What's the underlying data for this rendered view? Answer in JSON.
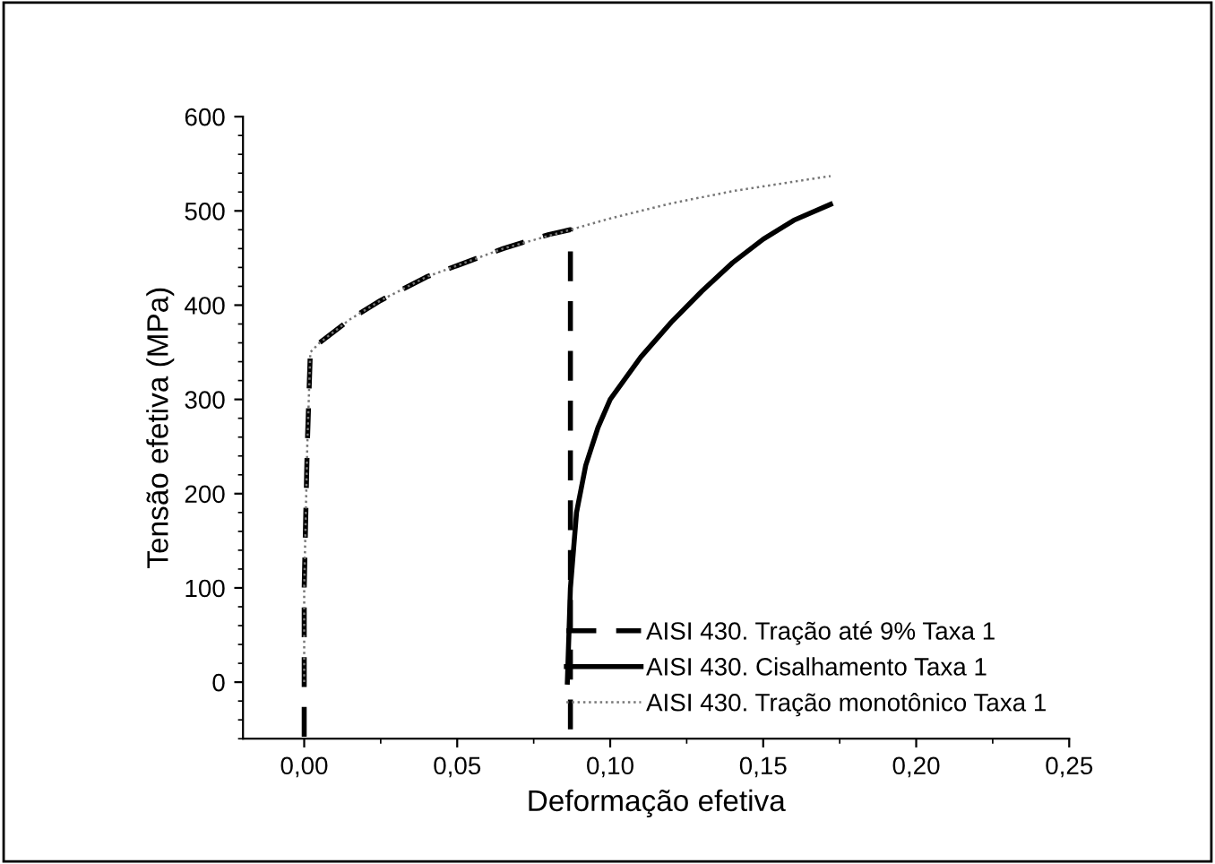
{
  "chart_data": {
    "type": "line",
    "xlabel": "Deformação efetiva",
    "ylabel": "Tensão efetiva (MPa)",
    "xlim": [
      -0.02,
      0.25
    ],
    "xticks": [
      {
        "value": 0,
        "label": "0,00"
      },
      {
        "value": 0.05,
        "label": "0,05"
      },
      {
        "value": 0.1,
        "label": "0,10"
      },
      {
        "value": 0.15,
        "label": "0,15"
      },
      {
        "value": 0.2,
        "label": "0,20"
      },
      {
        "value": 0.25,
        "label": "0,25"
      }
    ],
    "ylim": [
      -60,
      600
    ],
    "yticks": [
      0,
      100,
      200,
      300,
      400,
      500,
      600
    ],
    "grid": false,
    "legend": "bottom right",
    "series": [
      {
        "name": "AISI 430. Tração até 9% Taxa 1",
        "color": "#000000",
        "line_style": "dashed",
        "x": [
          0,
          0,
          0.001,
          0.002,
          0.005,
          0.015,
          0.025,
          0.04,
          0.05,
          0.065,
          0.08,
          0.087,
          0.087
        ],
        "values": [
          -58,
          100,
          250,
          350,
          360,
          385,
          405,
          430,
          442,
          460,
          475,
          480,
          -58
        ]
      },
      {
        "name": "AISI 430. Cisalhamento Taxa 1",
        "color": "#000000",
        "line_style": "solid",
        "x": [
          0.086,
          0.087,
          0.089,
          0.092,
          0.096,
          0.1,
          0.11,
          0.12,
          0.13,
          0.14,
          0.15,
          0.16,
          0.172
        ],
        "values": [
          0,
          100,
          180,
          230,
          270,
          300,
          345,
          382,
          415,
          445,
          470,
          490,
          507
        ]
      },
      {
        "name": "AISI 430. Tração monotônico Taxa 1",
        "color": "#777777",
        "line_style": "dotted",
        "x": [
          0,
          0,
          0.001,
          0.002,
          0.005,
          0.015,
          0.025,
          0.04,
          0.05,
          0.065,
          0.087,
          0.1,
          0.12,
          0.14,
          0.16,
          0.172
        ],
        "values": [
          0,
          100,
          250,
          350,
          360,
          385,
          405,
          430,
          442,
          460,
          480,
          492,
          508,
          521,
          531,
          537
        ]
      }
    ]
  }
}
